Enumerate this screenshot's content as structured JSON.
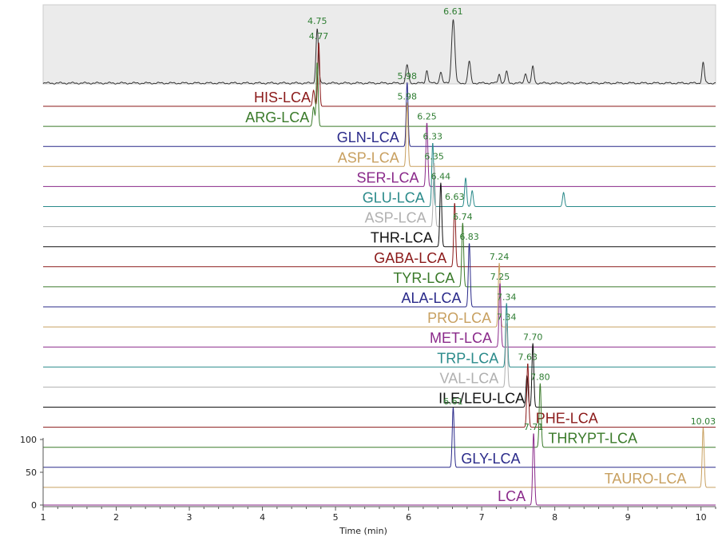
{
  "chart_data": {
    "type": "line",
    "title": "",
    "xlabel": "Time (min)",
    "ylabel": "",
    "xlim": [
      1,
      10.2
    ],
    "x_ticks": [
      1,
      2,
      3,
      4,
      5,
      6,
      7,
      8,
      9,
      10
    ],
    "y_ticks": [
      0,
      50,
      100
    ],
    "grid": false,
    "colors": {
      "tic_fill": "#ebebeb",
      "tic_line": "#333333",
      "axis": "#555555"
    },
    "tic": {
      "peaks": [
        {
          "rt": 4.75,
          "h": 0.85,
          "w": 0.017,
          "label": "4.75"
        },
        {
          "rt": 6.61,
          "h": 1.0,
          "w": 0.022,
          "label": "6.61"
        },
        {
          "rt": 5.98,
          "h": 0.28,
          "w": 0.018
        },
        {
          "rt": 6.25,
          "h": 0.2,
          "w": 0.016
        },
        {
          "rt": 6.44,
          "h": 0.18,
          "w": 0.016
        },
        {
          "rt": 6.83,
          "h": 0.34,
          "w": 0.018
        },
        {
          "rt": 7.24,
          "h": 0.14,
          "w": 0.016
        },
        {
          "rt": 7.34,
          "h": 0.18,
          "w": 0.016
        },
        {
          "rt": 7.6,
          "h": 0.16,
          "w": 0.016
        },
        {
          "rt": 7.7,
          "h": 0.26,
          "w": 0.016
        },
        {
          "rt": 10.03,
          "h": 0.32,
          "w": 0.016
        }
      ]
    },
    "series": [
      {
        "name": "HIS-LCA",
        "color": "#8b1a1a",
        "peaks": [
          {
            "rt": 4.77,
            "label": "4.77"
          }
        ],
        "extra": [
          {
            "rt": 4.7,
            "h": 0.25
          }
        ]
      },
      {
        "name": "ARG-LCA",
        "color": "#3a7a2a",
        "peaks": [
          {
            "rt": 4.75,
            "label": ""
          }
        ],
        "extra": [
          {
            "rt": 4.7,
            "h": 0.3
          }
        ]
      },
      {
        "name": "GLN-LCA",
        "color": "#2a2a8a",
        "peaks": [
          {
            "rt": 5.98,
            "label": "5.98"
          }
        ],
        "extra": []
      },
      {
        "name": "ASP-LCA",
        "color": "#c8a060",
        "peaks": [
          {
            "rt": 5.98,
            "label": "5.98"
          }
        ],
        "extra": []
      },
      {
        "name": "SER-LCA",
        "color": "#8a2a8a",
        "peaks": [
          {
            "rt": 6.25,
            "label": "6.25"
          }
        ],
        "extra": []
      },
      {
        "name": "GLU-LCA",
        "color": "#2a8a8a",
        "peaks": [
          {
            "rt": 6.33,
            "label": "6.33"
          }
        ],
        "extra": [
          {
            "rt": 6.78,
            "h": 0.45
          },
          {
            "rt": 6.87,
            "h": 0.25
          },
          {
            "rt": 8.12,
            "h": 0.22
          }
        ]
      },
      {
        "name": "ASP-LCA",
        "color": "#b0b0b0",
        "peaks": [
          {
            "rt": 6.35,
            "label": "6.35"
          }
        ],
        "extra": []
      },
      {
        "name": "THR-LCA",
        "color": "#111111",
        "peaks": [
          {
            "rt": 6.44,
            "label": "6.44"
          }
        ],
        "extra": []
      },
      {
        "name": "GABA-LCA",
        "color": "#8b1a1a",
        "peaks": [
          {
            "rt": 6.63,
            "label": "6.63"
          }
        ],
        "extra": []
      },
      {
        "name": "TYR-LCA",
        "color": "#3a7a2a",
        "peaks": [
          {
            "rt": 6.74,
            "label": "6.74"
          }
        ],
        "extra": []
      },
      {
        "name": "ALA-LCA",
        "color": "#2a2a8a",
        "peaks": [
          {
            "rt": 6.83,
            "label": "6.83"
          }
        ],
        "extra": []
      },
      {
        "name": "PRO-LCA",
        "color": "#c8a060",
        "peaks": [
          {
            "rt": 7.24,
            "label": "7.24"
          }
        ],
        "extra": []
      },
      {
        "name": "MET-LCA",
        "color": "#8a2a8a",
        "peaks": [
          {
            "rt": 7.25,
            "label": "7.25"
          }
        ],
        "extra": []
      },
      {
        "name": "TRP-LCA",
        "color": "#2a8a8a",
        "peaks": [
          {
            "rt": 7.34,
            "label": "7.34"
          }
        ],
        "extra": []
      },
      {
        "name": "VAL-LCA",
        "color": "#b0b0b0",
        "peaks": [
          {
            "rt": 7.34,
            "label": "7.34"
          }
        ],
        "extra": []
      },
      {
        "name": "ILE/LEU-LCA",
        "color": "#111111",
        "peaks": [
          {
            "rt": 7.7,
            "label": "7.70"
          }
        ],
        "extra": [
          {
            "rt": 7.62,
            "h": 0.5
          }
        ]
      },
      {
        "name": "PHE-LCA",
        "color": "#8b1a1a",
        "peaks": [
          {
            "rt": 7.63,
            "label": "7.63"
          }
        ],
        "extra": []
      },
      {
        "name": "THRYPT-LCA",
        "color": "#3a7a2a",
        "peaks": [
          {
            "rt": 7.8,
            "label": "7.80"
          }
        ],
        "extra": []
      },
      {
        "name": "GLY-LCA",
        "color": "#2a2a8a",
        "peaks": [
          {
            "rt": 6.61,
            "label": "6.61"
          }
        ],
        "extra": []
      },
      {
        "name": "TAURO-LCA",
        "color": "#c8a060",
        "peaks": [
          {
            "rt": 10.03,
            "label": "10.03"
          }
        ],
        "extra": []
      },
      {
        "name": "LCA",
        "color": "#8a2a8a",
        "peaks": [
          {
            "rt": 7.71,
            "label": "7.71"
          }
        ],
        "extra": []
      }
    ]
  }
}
